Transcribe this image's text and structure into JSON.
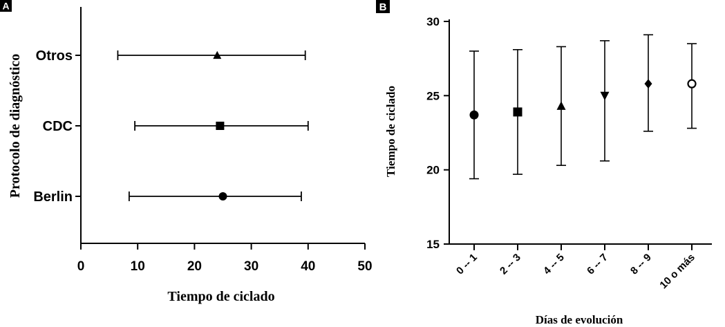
{
  "figure": {
    "panel_a_label": "A",
    "panel_b_label": "B"
  },
  "chart_data": [
    {
      "panel": "A",
      "type": "scatter",
      "orientation": "horizontal",
      "xlabel": "Tiempo de ciclado",
      "ylabel": "Protocolo de diagnóstico",
      "xlim": [
        0,
        50
      ],
      "xticks": [
        0,
        10,
        20,
        30,
        40,
        50
      ],
      "categories": [
        "Otros",
        "CDC",
        "Berlin"
      ],
      "points": [
        {
          "category": "Otros",
          "value": 24,
          "low": 6.5,
          "high": 39.5,
          "marker": "triangle"
        },
        {
          "category": "CDC",
          "value": 24.5,
          "low": 9.5,
          "high": 40,
          "marker": "square"
        },
        {
          "category": "Berlin",
          "value": 25,
          "low": 8.5,
          "high": 38.8,
          "marker": "circle"
        }
      ],
      "grid": false
    },
    {
      "panel": "B",
      "type": "scatter",
      "orientation": "vertical",
      "xlabel": "Días de evolución",
      "ylabel": "Tiempo de ciclado",
      "ylim": [
        15,
        30
      ],
      "yticks": [
        15,
        20,
        25,
        30
      ],
      "categories": [
        "0 -- 1",
        "2 -- 3",
        "4 -- 5",
        "6 -- 7",
        "8 -- 9",
        "10 o más"
      ],
      "points": [
        {
          "category": "0 -- 1",
          "value": 23.7,
          "low": 19.4,
          "high": 28,
          "marker": "circle"
        },
        {
          "category": "2 -- 3",
          "value": 23.9,
          "low": 19.7,
          "high": 28.1,
          "marker": "square"
        },
        {
          "category": "4 -- 5",
          "value": 24.3,
          "low": 20.3,
          "high": 28.3,
          "marker": "triangle"
        },
        {
          "category": "6 -- 7",
          "value": 25,
          "low": 20.6,
          "high": 28.7,
          "marker": "triangle-down"
        },
        {
          "category": "8 -- 9",
          "value": 25.8,
          "low": 22.6,
          "high": 29.1,
          "marker": "diamond"
        },
        {
          "category": "10 o más",
          "value": 25.8,
          "low": 22.8,
          "high": 28.5,
          "marker": "open-circle"
        }
      ],
      "grid": false
    }
  ]
}
